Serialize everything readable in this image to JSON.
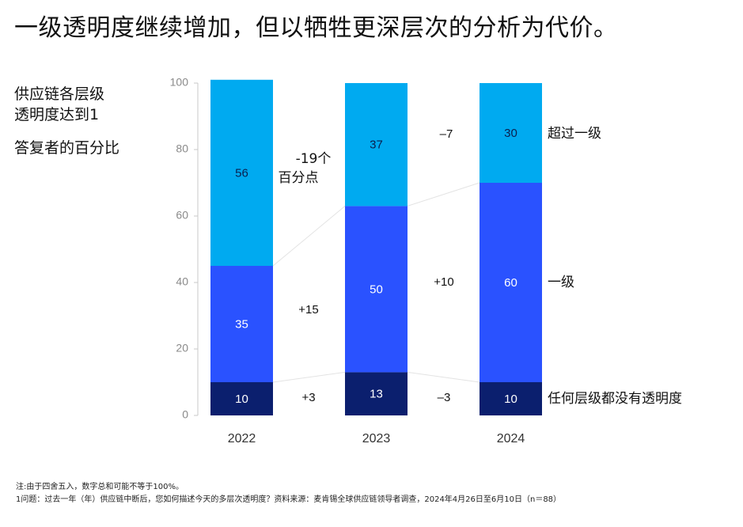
{
  "title": "一级透明度继续增加，但以牺牲更深层次的分析为代价。",
  "side": {
    "line1": "供应链各层级",
    "line2": "透明度达到1",
    "unit": "答复者的百分比"
  },
  "colors": {
    "none": "#0b1f6e",
    "first_tier": "#2a52ff",
    "beyond": "#00aaf0"
  },
  "chart_data": {
    "type": "bar",
    "stacked": true,
    "categories": [
      "2022",
      "2023",
      "2024"
    ],
    "ylim": [
      0,
      100
    ],
    "yticks": [
      0,
      20,
      40,
      60,
      80,
      100
    ],
    "series": [
      {
        "name": "任何层级都没有透明度",
        "values": [
          10,
          13,
          10
        ]
      },
      {
        "name": "一级",
        "values": [
          35,
          50,
          60
        ]
      },
      {
        "name": "超过一级",
        "values": [
          56,
          37,
          30
        ]
      }
    ],
    "changes": {
      "2022-2023": {
        "none": "+3",
        "first_tier": "+15",
        "beyond_line1": "-19个",
        "beyond_line2": "百分点"
      },
      "2023-2024": {
        "none": "–3",
        "first_tier": "+10",
        "beyond": "–7"
      }
    }
  },
  "notes": {
    "line1": "注:由于四舍五入，数字总和可能不等于100%。",
    "line2": "1问题：过去一年（年）供应链中断后，您如何描述今天的多层次透明度？资料来源：麦肯锡全球供应链领导者调查，2024年4月26日至6月10日（n＝88）"
  }
}
